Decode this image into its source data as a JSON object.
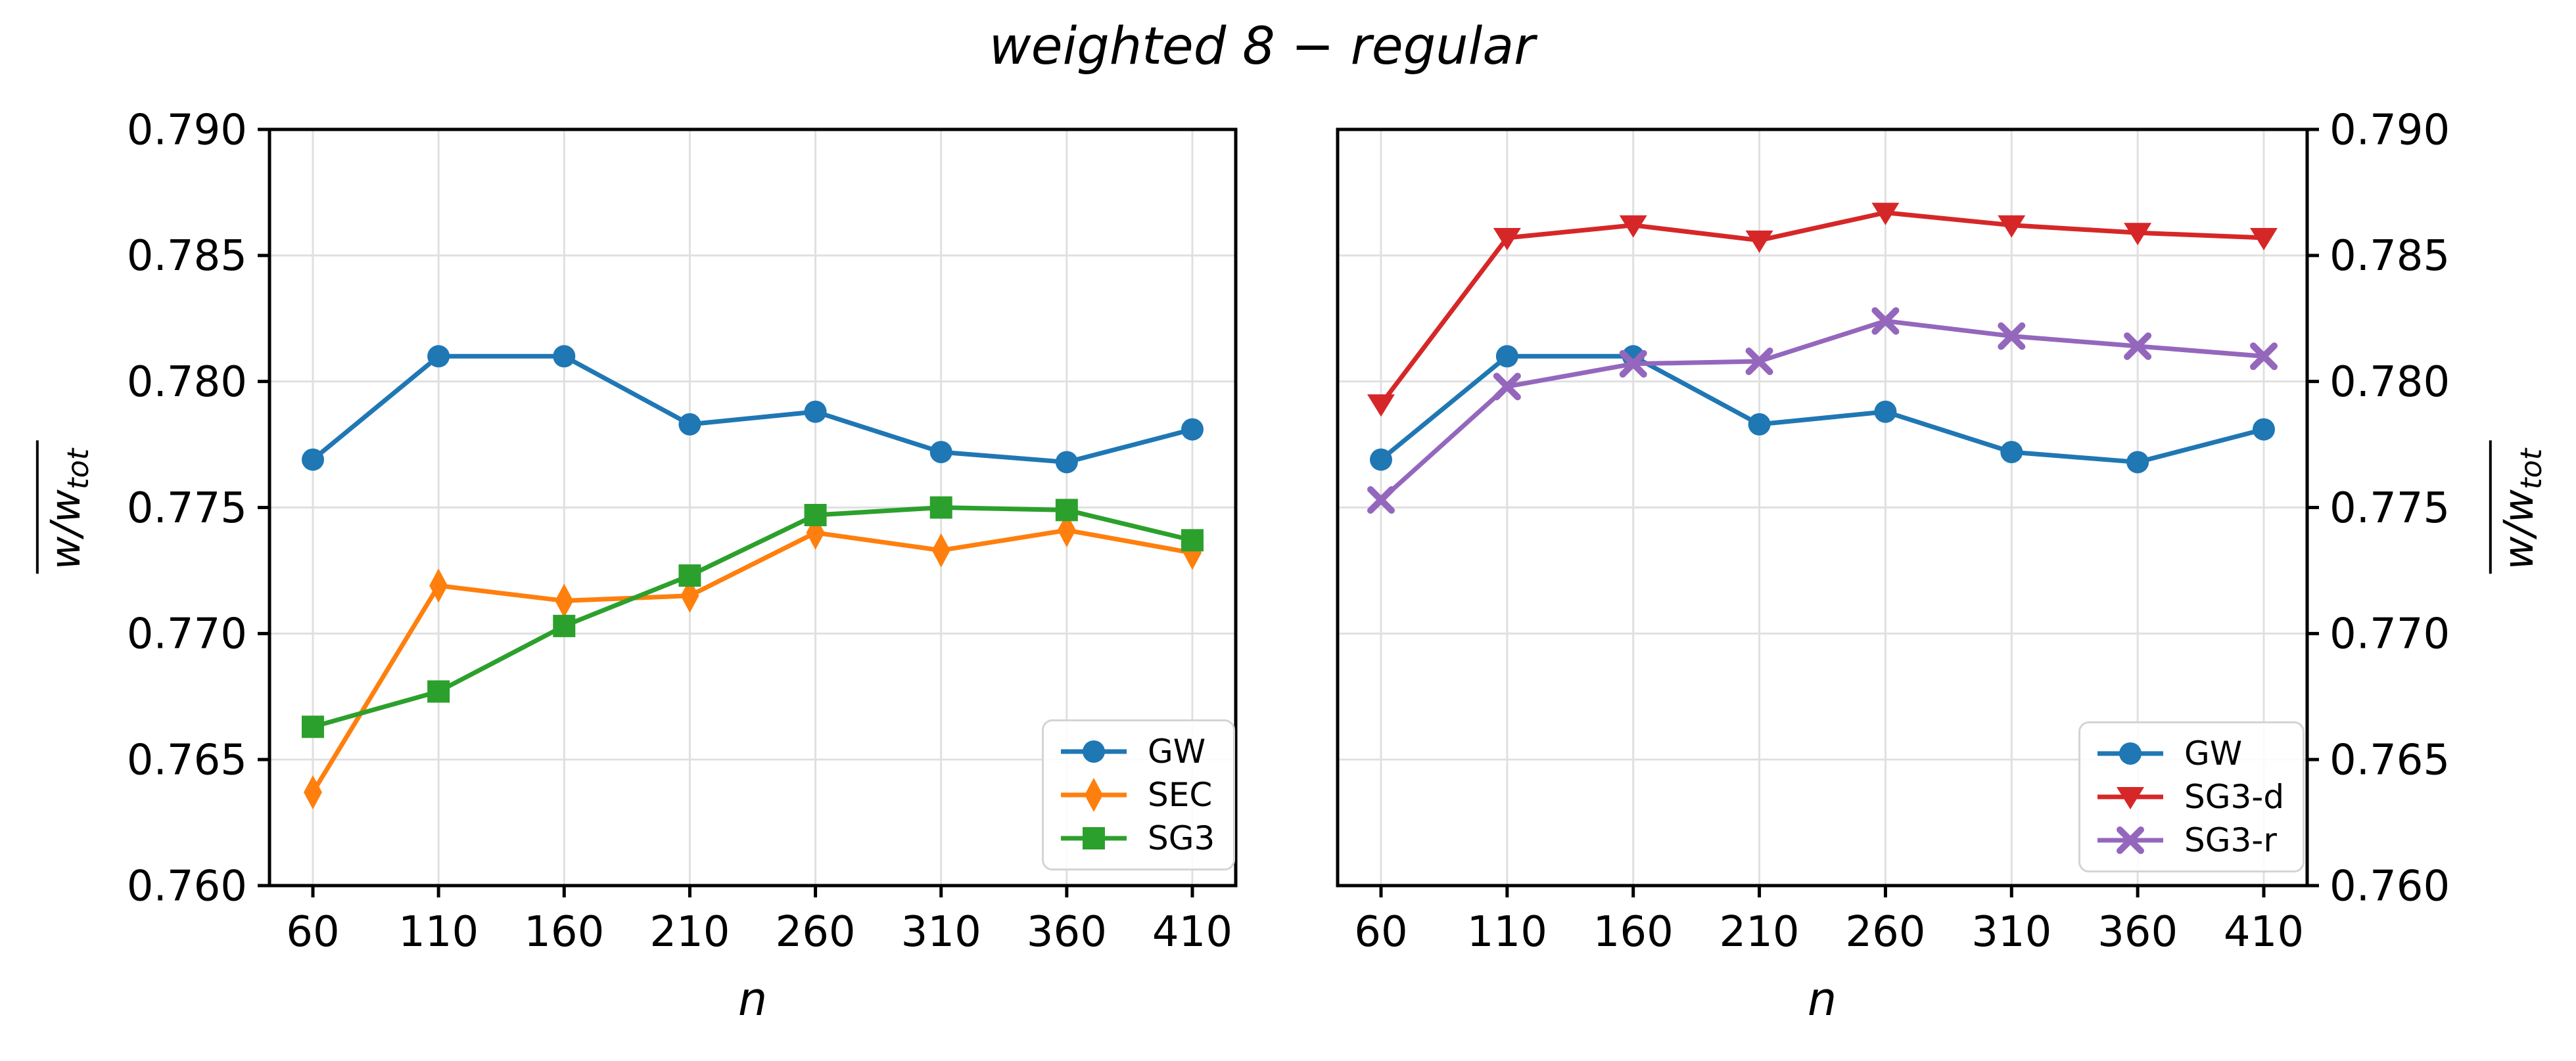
{
  "figure": {
    "title": "weighted 8 − regular"
  },
  "labels": {
    "ylabel_main": "w/w",
    "ylabel_sub": "tot"
  },
  "colors": {
    "background": "#ffffff",
    "grid": "#e0e0e0",
    "axis": "#000000",
    "blue": "#1f77b4",
    "orange": "#ff7f0e",
    "green": "#2ca02c",
    "red": "#d62728",
    "purple": "#9467bd"
  },
  "chart_data": [
    {
      "type": "line",
      "panel": "left",
      "xlabel": "n",
      "ylabel": "w/w_tot (overlined)",
      "x": [
        60,
        110,
        160,
        210,
        260,
        310,
        360,
        410
      ],
      "xticks": [
        60,
        110,
        160,
        210,
        260,
        310,
        360,
        410
      ],
      "yticks": [
        "0.760",
        "0.765",
        "0.770",
        "0.775",
        "0.780",
        "0.785",
        "0.790"
      ],
      "ylim": [
        0.76,
        0.79
      ],
      "grid": true,
      "y_axis_side": "left",
      "legend_position": "lower right",
      "series": [
        {
          "name": "GW",
          "color": "#1f77b4",
          "marker": "circle",
          "values": [
            0.7769,
            0.781,
            0.781,
            0.7783,
            0.7788,
            0.7772,
            0.7768,
            0.7781
          ]
        },
        {
          "name": "SEC",
          "color": "#ff7f0e",
          "marker": "thin-diamond",
          "values": [
            0.7637,
            0.7719,
            0.7713,
            0.7715,
            0.774,
            0.7733,
            0.7741,
            0.7732
          ]
        },
        {
          "name": "SG3",
          "color": "#2ca02c",
          "marker": "square",
          "values": [
            0.7663,
            0.7677,
            0.7703,
            0.7723,
            0.7747,
            0.775,
            0.7749,
            0.7737
          ]
        }
      ]
    },
    {
      "type": "line",
      "panel": "right",
      "xlabel": "n",
      "ylabel": "w/w_tot (overlined)",
      "x": [
        60,
        110,
        160,
        210,
        260,
        310,
        360,
        410
      ],
      "xticks": [
        60,
        110,
        160,
        210,
        260,
        310,
        360,
        410
      ],
      "yticks": [
        "0.760",
        "0.765",
        "0.770",
        "0.775",
        "0.780",
        "0.785",
        "0.790"
      ],
      "ylim": [
        0.76,
        0.79
      ],
      "grid": true,
      "y_axis_side": "right",
      "legend_position": "lower right",
      "series": [
        {
          "name": "GW",
          "color": "#1f77b4",
          "marker": "circle",
          "values": [
            0.7769,
            0.781,
            0.781,
            0.7783,
            0.7788,
            0.7772,
            0.7768,
            0.7781
          ]
        },
        {
          "name": "SG3-d",
          "color": "#d62728",
          "marker": "triangle-down",
          "values": [
            0.7791,
            0.7857,
            0.7862,
            0.7856,
            0.7867,
            0.7862,
            0.7859,
            0.7857
          ]
        },
        {
          "name": "SG3-r",
          "color": "#9467bd",
          "marker": "x",
          "values": [
            0.7753,
            0.7798,
            0.7807,
            0.7808,
            0.7824,
            0.7818,
            0.7814,
            0.781
          ]
        }
      ]
    }
  ]
}
